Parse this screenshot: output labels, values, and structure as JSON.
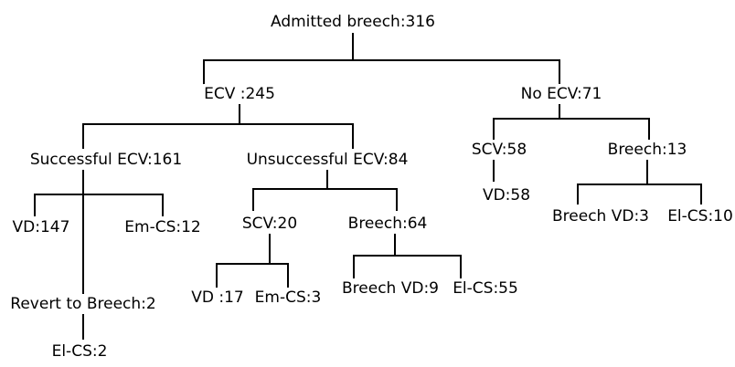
{
  "tree": {
    "root": "Admitted breech:316",
    "ecv": "ECV :245",
    "no_ecv": "No ECV:71",
    "successful_ecv": "Successful ECV:161",
    "unsuccessful_ecv": "Unsuccessful ECV:84",
    "scv_58": "SCV:58",
    "breech_13": "Breech:13",
    "vd_147": "VD:147",
    "em_cs_12": "Em-CS:12",
    "scv_20": "SCV:20",
    "breech_64": "Breech:64",
    "vd_58": "VD:58",
    "breech_vd_3": "Breech VD:3",
    "el_cs_10": "El-CS:10",
    "vd_17": "VD :17",
    "em_cs_3": "Em-CS:3",
    "breech_vd_9": "Breech VD:9",
    "el_cs_55": "El-CS:55",
    "revert_to_breech": "Revert to Breech:2",
    "el_cs_2": "El-CS:2"
  }
}
